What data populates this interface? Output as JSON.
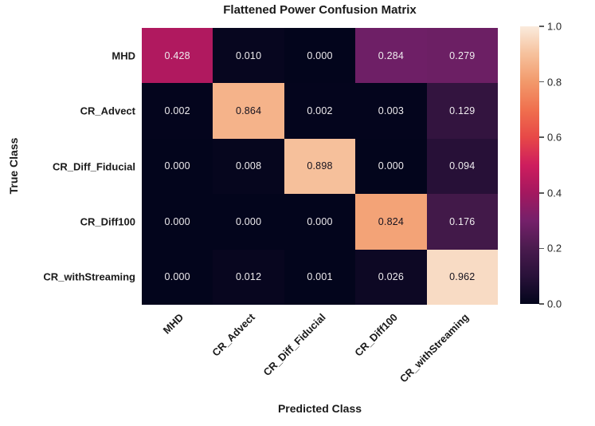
{
  "chart_data": {
    "type": "heatmap",
    "title": "Flattened Power Confusion Matrix",
    "xlabel": "Predicted Class",
    "ylabel": "True Class",
    "categories": [
      "MHD",
      "CR_Advect",
      "CR_Diff_Fiducial",
      "CR_Diff100",
      "CR_withStreaming"
    ],
    "rows": [
      "MHD",
      "CR_Advect",
      "CR_Diff_Fiducial",
      "CR_Diff100",
      "CR_withStreaming"
    ],
    "matrix": [
      [
        0.428,
        0.01,
        0.0,
        0.284,
        0.279
      ],
      [
        0.002,
        0.864,
        0.002,
        0.003,
        0.129
      ],
      [
        0.0,
        0.008,
        0.898,
        0.0,
        0.094
      ],
      [
        0.0,
        0.0,
        0.0,
        0.824,
        0.176
      ],
      [
        0.0,
        0.012,
        0.001,
        0.026,
        0.962
      ]
    ],
    "value_decimals": 3,
    "grid": false,
    "colorbar": {
      "position": "right",
      "min": 0.0,
      "max": 1.0,
      "tick_values": [
        1.0,
        0.8,
        0.6,
        0.4,
        0.2,
        0.0
      ],
      "tick_labels": [
        "1.0",
        "0.8",
        "0.6",
        "0.4",
        "0.2",
        "0.0"
      ]
    },
    "colormap": {
      "name": "rocket",
      "stops": [
        {
          "v": 0.0,
          "color": "#03051C"
        },
        {
          "v": 0.1,
          "color": "#291139"
        },
        {
          "v": 0.2,
          "color": "#4A1B4E"
        },
        {
          "v": 0.3,
          "color": "#75206A"
        },
        {
          "v": 0.4,
          "color": "#A4185F"
        },
        {
          "v": 0.5,
          "color": "#CE1D5E"
        },
        {
          "v": 0.6,
          "color": "#E74847"
        },
        {
          "v": 0.7,
          "color": "#F0704E"
        },
        {
          "v": 0.8,
          "color": "#F2996B"
        },
        {
          "v": 0.9,
          "color": "#F6C19C"
        },
        {
          "v": 1.0,
          "color": "#FAEBDD"
        }
      ]
    },
    "annotation_text_color_light": "#EFECEF",
    "annotation_text_color_dark": "#15121E",
    "text_color_threshold": 0.5
  }
}
